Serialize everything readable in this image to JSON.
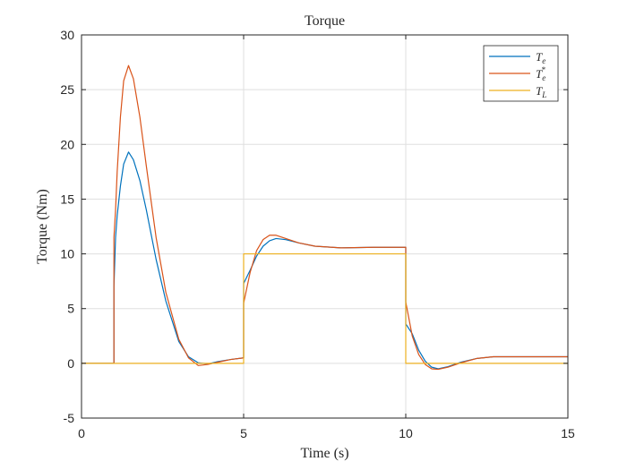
{
  "chart_data": {
    "type": "line",
    "title": "Torque",
    "xlabel": "Time (s)",
    "ylabel": "Torque (Nm)",
    "xlim": [
      0,
      15
    ],
    "ylim": [
      -5,
      30
    ],
    "xticks": [
      0,
      5,
      10,
      15
    ],
    "yticks": [
      -5,
      0,
      5,
      10,
      15,
      20,
      25,
      30
    ],
    "xtick_labels": [
      "0",
      "5",
      "10",
      "15"
    ],
    "ytick_labels": [
      "-5",
      "0",
      "5",
      "10",
      "15",
      "20",
      "25",
      "30"
    ],
    "grid": true,
    "legend_position": "top-right",
    "series": [
      {
        "name": "Te",
        "legend_base": "T",
        "legend_sub": "e",
        "legend_sup": "",
        "color": "#0072BD",
        "x": [
          0,
          1,
          1.0001,
          1.05,
          1.1,
          1.2,
          1.3,
          1.45,
          1.6,
          1.8,
          2.0,
          2.3,
          2.6,
          3.0,
          3.3,
          3.6,
          3.9,
          4.2,
          4.6,
          5.0,
          5.0001,
          5.2,
          5.4,
          5.6,
          5.8,
          6.0,
          6.3,
          6.7,
          7.2,
          8.0,
          9.0,
          10.0,
          10.0001,
          10.2,
          10.4,
          10.6,
          10.8,
          11.0,
          11.3,
          11.7,
          12.2,
          12.7,
          13.5,
          15.0
        ],
        "y": [
          0,
          0,
          7.0,
          11.5,
          13.5,
          16.2,
          18.2,
          19.3,
          18.6,
          16.7,
          14.0,
          9.5,
          5.7,
          2.0,
          0.6,
          0.05,
          -0.05,
          0.15,
          0.35,
          0.5,
          7.3,
          8.5,
          9.8,
          10.7,
          11.2,
          11.4,
          11.3,
          11.0,
          10.7,
          10.55,
          10.6,
          10.6,
          3.6,
          2.7,
          1.2,
          0.2,
          -0.35,
          -0.5,
          -0.3,
          0.1,
          0.45,
          0.6,
          0.6,
          0.6
        ]
      },
      {
        "name": "Te*",
        "legend_base": "T",
        "legend_sub": "e",
        "legend_sup": "*",
        "color": "#D95319",
        "x": [
          0,
          1,
          1.0001,
          1.05,
          1.1,
          1.2,
          1.3,
          1.45,
          1.6,
          1.8,
          2.0,
          2.3,
          2.6,
          3.0,
          3.3,
          3.6,
          3.9,
          4.2,
          4.6,
          5.0,
          5.0001,
          5.2,
          5.4,
          5.6,
          5.8,
          6.0,
          6.3,
          6.7,
          7.2,
          8.0,
          9.0,
          10.0,
          10.0001,
          10.2,
          10.4,
          10.6,
          10.8,
          11.0,
          11.3,
          11.7,
          12.2,
          12.7,
          13.5,
          15.0
        ],
        "y": [
          0,
          0,
          11.5,
          14.0,
          17.5,
          22.5,
          25.8,
          27.2,
          26.0,
          22.5,
          18.0,
          11.5,
          6.5,
          2.2,
          0.5,
          -0.2,
          -0.1,
          0.1,
          0.35,
          0.5,
          5.5,
          8.3,
          10.3,
          11.3,
          11.7,
          11.7,
          11.4,
          11.0,
          10.7,
          10.55,
          10.6,
          10.6,
          5.6,
          2.5,
          0.8,
          -0.1,
          -0.5,
          -0.55,
          -0.35,
          0.05,
          0.45,
          0.6,
          0.6,
          0.6
        ]
      },
      {
        "name": "TL",
        "legend_base": "T",
        "legend_sub": "L",
        "legend_sup": "",
        "color": "#EDB120",
        "x": [
          0,
          5,
          5.0001,
          10,
          10.0001,
          15
        ],
        "y": [
          0,
          0,
          10,
          10,
          0,
          0
        ]
      }
    ]
  }
}
